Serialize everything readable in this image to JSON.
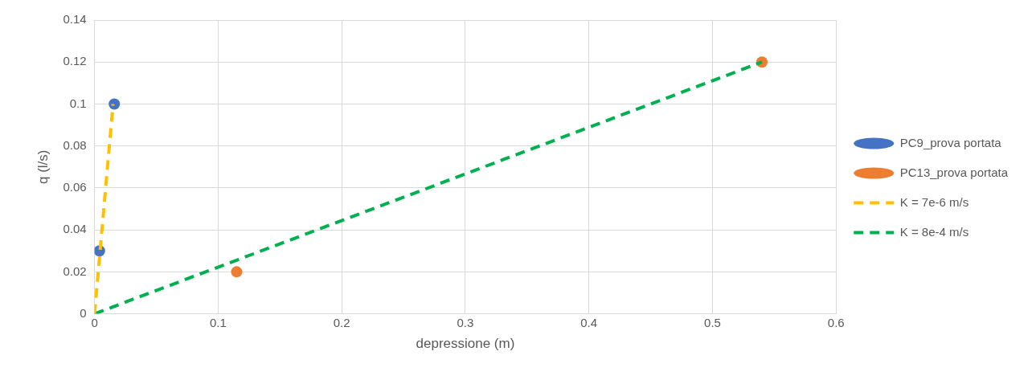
{
  "chart_data": {
    "type": "scatter",
    "xlabel": "depressione (m)",
    "ylabel": "q (l/s)",
    "xlim": [
      0,
      0.6
    ],
    "xticks": [
      0,
      0.1,
      0.2,
      0.3,
      0.4,
      0.5,
      0.6
    ],
    "ylim": [
      0,
      0.14
    ],
    "yticks": [
      0,
      0.02,
      0.04,
      0.06,
      0.08,
      0.1,
      0.12,
      0.14
    ],
    "grid": true,
    "legend": "right",
    "marker": "circle",
    "series": [
      {
        "name": "PC9_prova portata",
        "type": "scatter",
        "color": "#4472c4",
        "x": [
          0.004,
          0.016
        ],
        "values": [
          0.03,
          0.1
        ]
      },
      {
        "name": "PC13_prova portata",
        "type": "scatter",
        "color": "#ed7d31",
        "x": [
          0.115,
          0.54
        ],
        "values": [
          0.02,
          0.12
        ]
      },
      {
        "name": "K = 7e-6 m/s",
        "type": "line",
        "color": "#ffc000",
        "line_style": "dashed",
        "marker": "none",
        "x": [
          0,
          0.015
        ],
        "values": [
          0,
          0.1
        ]
      },
      {
        "name": "K = 8e-4 m/s",
        "type": "line",
        "color": "#00b050",
        "line_style": "dashed",
        "marker": "none",
        "x": [
          0,
          0.54
        ],
        "values": [
          0,
          0.12
        ]
      }
    ]
  }
}
